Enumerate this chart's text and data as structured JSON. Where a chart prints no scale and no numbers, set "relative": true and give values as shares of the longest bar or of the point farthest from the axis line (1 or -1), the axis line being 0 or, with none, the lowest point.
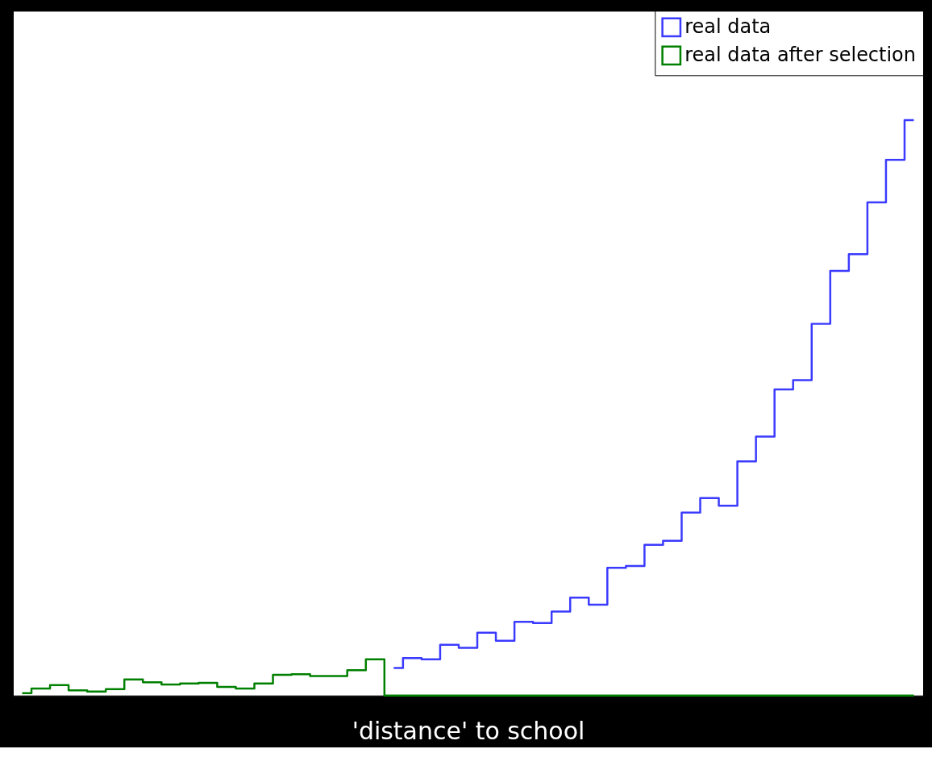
{
  "chart_data": {
    "type": "step",
    "relative": true,
    "xlabel": "'distance' to school",
    "tick_labels": false,
    "grid": false,
    "legend": "top right",
    "line_style": "solid",
    "marker": "none",
    "categories": [
      null,
      null,
      null,
      null,
      null,
      null,
      null,
      null,
      null,
      null,
      null,
      null,
      null,
      null,
      null,
      null,
      null,
      null,
      null,
      null,
      null,
      null,
      null,
      null,
      null,
      null,
      null,
      null,
      null,
      null,
      null,
      null,
      null,
      null,
      null,
      null,
      null,
      null,
      null,
      null,
      null,
      null,
      null,
      null,
      null,
      null,
      null,
      null,
      null
    ],
    "series": [
      {
        "name": "real data",
        "color": "#3b3bff",
        "values": [
          null,
          null,
          null,
          null,
          null,
          null,
          null,
          null,
          null,
          null,
          null,
          null,
          null,
          null,
          null,
          null,
          null,
          null,
          null,
          null,
          0.048,
          0.065,
          0.063,
          0.088,
          0.083,
          0.109,
          0.095,
          0.128,
          0.126,
          0.146,
          0.17,
          0.158,
          0.222,
          0.225,
          0.262,
          0.269,
          0.318,
          0.343,
          0.33,
          0.407,
          0.45,
          0.532,
          0.548,
          0.646,
          0.738,
          0.767,
          0.857,
          0.931,
          1
        ]
      },
      {
        "name": "real data after selection",
        "color": "#008000",
        "values": [
          0.004,
          0.012,
          0.018,
          0.009,
          0.007,
          0.011,
          0.028,
          0.023,
          0.019,
          0.021,
          0.022,
          0.015,
          0.012,
          0.021,
          0.036,
          0.037,
          0.034,
          0.034,
          0.044,
          0.063,
          0,
          0,
          0,
          0,
          0,
          0,
          0,
          0,
          0,
          0,
          0,
          0,
          0,
          0,
          0,
          0,
          0,
          0,
          0,
          0,
          0,
          0,
          0,
          0,
          0,
          0,
          0,
          0,
          0
        ]
      }
    ]
  }
}
